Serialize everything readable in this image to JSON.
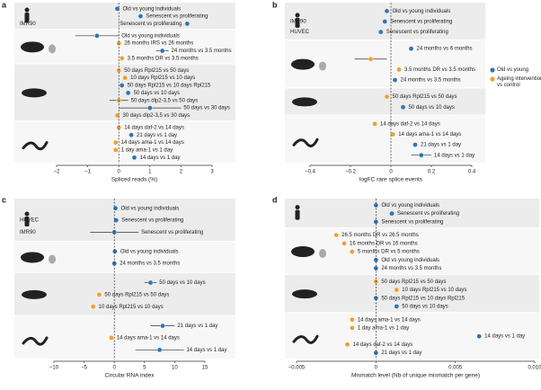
{
  "chart_data": [
    {
      "type": "forest",
      "panel": "a",
      "xlabel": "Spliced reads (%)",
      "xlim": [
        -2,
        3
      ],
      "xticks": [
        {
          "value": -2,
          "label": "−2"
        },
        {
          "value": -1,
          "label": "−1"
        },
        0,
        1,
        2,
        3
      ],
      "groups": [
        {
          "rows": [
            {
              "label": "Old vs young individuals",
              "value": -0.05,
              "color": "#2e75b6"
            },
            {
              "label": "Senescent vs proliferating",
              "value": 0.7,
              "color": "#2e75b6"
            },
            {
              "label": "Senescent vs proliferating",
              "value": 2.2,
              "color": "#2e75b6",
              "cell": "IMR90"
            }
          ]
        },
        {
          "rows": [
            {
              "label": "Old vs young individuals",
              "value": -0.7,
              "error": 0.7,
              "color": "#2e75b6"
            },
            {
              "label": "26 months IRS vs 26 months",
              "value": 0.0,
              "color": "#f0a030"
            },
            {
              "label": "24 months vs 3.5 months",
              "value": 1.4,
              "error": 0.2,
              "color": "#2e75b6"
            },
            {
              "label": "3.5 months DR vs 3.5 months",
              "value": 0.1,
              "color": "#f0a030"
            }
          ]
        },
        {
          "rows": [
            {
              "label": "50 days Rpl215 vs 50 days",
              "value": 0.0,
              "color": "#f0a030"
            },
            {
              "label": "10 days Rpl215 vs 10 days",
              "value": 0.2,
              "color": "#f0a030"
            },
            {
              "label": "50 days Rpl215 vs 10 days Rpl215",
              "value": 0.1,
              "color": "#2e75b6"
            },
            {
              "label": "50 days vs 10 days",
              "value": 0.3,
              "color": "#2e75b6"
            },
            {
              "label": "50 days dlp2-3,5 vs 50 days",
              "value": 0.0,
              "error": 0.3,
              "color": "#f0a030"
            },
            {
              "label": "50 days vs 30 days",
              "value": 1.0,
              "error": 1.0,
              "color": "#2e75b6"
            },
            {
              "label": "30 days dlp2-3,5 vs 30 days",
              "value": -0.05,
              "color": "#f0a030"
            }
          ]
        },
        {
          "rows": [
            {
              "label": "14 days daf-2 vs 14 days",
              "value": 0.0,
              "color": "#f0a030"
            },
            {
              "label": "21 days vs 1 day",
              "value": 0.4,
              "color": "#2e75b6"
            },
            {
              "label": "14 days ama-1 vs 14 days",
              "value": -0.1,
              "color": "#f0a030"
            },
            {
              "label": "1 day ama-1 vs 1 day",
              "value": -0.1,
              "color": "#f0a030"
            },
            {
              "label": "14 days vs 1 day",
              "value": 0.5,
              "color": "#2e75b6"
            }
          ]
        }
      ]
    },
    {
      "type": "forest",
      "panel": "b",
      "xlabel": "logFC rare splice events",
      "xlim": [
        -0.4,
        0.4
      ],
      "xticks": [
        {
          "value": -0.4,
          "label": "−0.4"
        },
        {
          "value": -0.2,
          "label": "−0.2"
        },
        0,
        0.2,
        0.4
      ],
      "legend": [
        {
          "name": "Old vs young",
          "color": "#2e75b6"
        },
        {
          "name": "Ageing intervention vs control",
          "color": "#f0a030"
        }
      ],
      "groups": [
        {
          "rows": [
            {
              "label": "Old vs young individuals",
              "value": -0.02,
              "color": "#2e75b6"
            },
            {
              "label": "Senescent vs proliferating",
              "value": -0.03,
              "color": "#2e75b6",
              "cell": "IMR90"
            },
            {
              "label": "Senescent vs proliferating",
              "value": -0.05,
              "color": "#2e75b6",
              "cell": "HUVEC"
            }
          ]
        },
        {
          "rows": [
            {
              "label": "24 months vs 6 months",
              "value": 0.1,
              "color": "#2e75b6"
            },
            {
              "label": null,
              "value": -0.1,
              "error": 0.08,
              "color": "#f0a030"
            },
            {
              "label": "3.5 months DR vs 3.5 months",
              "value": 0.04,
              "color": "#f0a030"
            },
            {
              "label": "24 months vs 3.5 months",
              "value": 0.02,
              "color": "#2e75b6"
            }
          ]
        },
        {
          "rows": [
            {
              "label": "50 days Rpl215 vs 50 days",
              "value": -0.02,
              "color": "#f0a030"
            },
            {
              "label": "50 days vs 10 days",
              "value": 0.06,
              "color": "#2e75b6"
            }
          ]
        },
        {
          "rows": [
            {
              "label": "14 days daf-2 vs 14 days",
              "value": -0.08,
              "color": "#f0a030"
            },
            {
              "label": "14 days ama-1 vs 14 days",
              "value": 0.01,
              "color": "#f0a030"
            },
            {
              "label": "21 days vs 1 day",
              "value": 0.12,
              "color": "#2e75b6"
            },
            {
              "label": "14 days vs 1 day",
              "value": 0.15,
              "error": 0.05,
              "color": "#2e75b6"
            }
          ]
        }
      ]
    },
    {
      "type": "forest",
      "panel": "c",
      "xlabel": "Circular RNA index",
      "xlim": [
        -10,
        15
      ],
      "xticks": [
        {
          "value": -10,
          "label": "−10"
        },
        {
          "value": -5,
          "label": "−5"
        },
        0,
        5,
        10,
        15
      ],
      "groups": [
        {
          "rows": [
            {
              "label": "Old vs young individuals",
              "value": 0.2,
              "color": "#2e75b6"
            },
            {
              "label": "Senescent vs proliferating",
              "value": 0.3,
              "color": "#2e75b6",
              "cell": "HUVEC"
            },
            {
              "label": "Senescent vs proliferating",
              "value": 0.0,
              "error": 4,
              "color": "#2e75b6",
              "cell": "IMR90"
            }
          ]
        },
        {
          "rows": [
            {
              "label": "Old vs young individuals",
              "value": 0.1,
              "color": "#2e75b6"
            },
            {
              "label": "24 months vs 3.5 months",
              "value": 0.0,
              "color": "#2e75b6"
            }
          ]
        },
        {
          "rows": [
            {
              "label": "50 days vs 10 days",
              "value": 6,
              "error": 1,
              "color": "#2e75b6"
            },
            {
              "label": "50 days Rpl215 vs 50 days",
              "value": -2.5,
              "color": "#f0a030"
            },
            {
              "label": "10 days Rpl215 vs 10 days",
              "value": -3.5,
              "color": "#f0a030"
            }
          ]
        },
        {
          "rows": [
            {
              "label": "21 days vs 1 day",
              "value": 8,
              "error": 2,
              "color": "#2e75b6"
            },
            {
              "label": "14 days ama-1 vs 14 days",
              "value": -0.5,
              "color": "#f0a030"
            },
            {
              "label": "14 days vs 1 day",
              "value": 7.5,
              "error": 4,
              "color": "#2e75b6"
            }
          ]
        }
      ]
    },
    {
      "type": "forest",
      "panel": "d",
      "xlabel": "Mismatch level (Nb of unique mismatch per gene)",
      "xlim": [
        -0.005,
        0.01
      ],
      "xticks": [
        {
          "value": -0.005,
          "label": "−0.005"
        },
        0,
        0.005,
        {
          "value": 0.01,
          "label": "0.010"
        }
      ],
      "groups": [
        {
          "rows": [
            {
              "label": "Old vs young individuals",
              "value": 0.0,
              "color": "#2e75b6"
            },
            {
              "label": "Senescent vs proliferating",
              "value": 0.001,
              "color": "#2e75b6"
            },
            {
              "label": "Senescent vs proliferating",
              "value": 0.0,
              "color": "#2e75b6"
            }
          ]
        },
        {
          "rows": [
            {
              "label": "26.5 months DR vs 26.5 months",
              "value": -0.0025,
              "color": "#f0a030"
            },
            {
              "label": "16 months DR vs 16 months",
              "value": -0.002,
              "color": "#f0a030"
            },
            {
              "label": "5 months DR vs 5 months",
              "value": -0.0015,
              "color": "#f0a030"
            },
            {
              "label": "Old vs young individuals",
              "value": 0.0,
              "color": "#2e75b6"
            },
            {
              "label": "24 months vs 3.5 months",
              "value": 0.0,
              "color": "#2e75b6"
            }
          ]
        },
        {
          "rows": [
            {
              "label": "50 days Rpl215 vs 50 days",
              "value": 0.0,
              "color": "#f0a030"
            },
            {
              "label": "10 days Rpl215 vs 10 days",
              "value": 0.0013,
              "color": "#f0a030"
            },
            {
              "label": "50 days Rpl215 vs 10 days Rpl215",
              "value": 0.0,
              "color": "#2e75b6"
            },
            {
              "label": "50 days vs 10 days",
              "value": 0.0013,
              "color": "#2e75b6"
            }
          ]
        },
        {
          "rows": [
            {
              "label": "14 days ama-1 vs 14 days",
              "value": -0.0015,
              "color": "#f0a030"
            },
            {
              "label": "1 day ama-1 vs 1 day",
              "value": -0.0015,
              "color": "#f0a030"
            },
            {
              "label": "14 days vs 1 day",
              "value": 0.0065,
              "color": "#2e75b6"
            },
            {
              "label": "14 days daf-2 vs 14 days",
              "value": -0.0018,
              "color": "#f0a030"
            },
            {
              "label": "21 days vs 1 day",
              "value": 0.0,
              "color": "#2e75b6"
            }
          ]
        }
      ]
    }
  ]
}
